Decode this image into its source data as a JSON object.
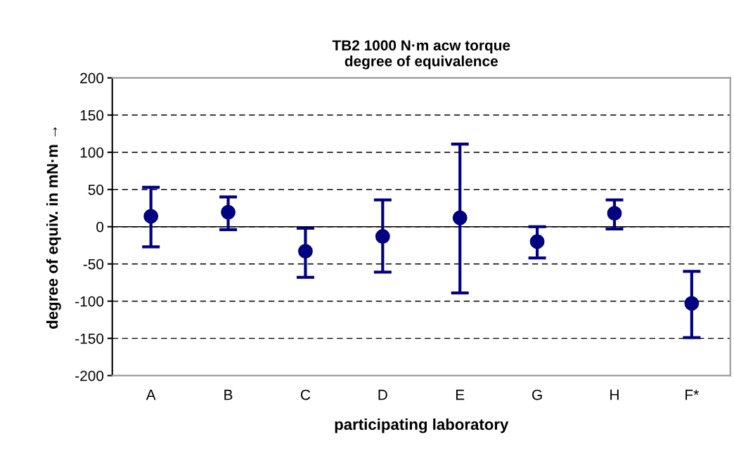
{
  "chart_data": {
    "type": "scatter",
    "title": "TB2 1000 N·m acw torque\ndegree of equivalence",
    "xlabel": "participating laboratory",
    "ylabel": "degree of equiv. in mN·m →",
    "categories": [
      "A",
      "B",
      "C",
      "D",
      "E",
      "G",
      "H",
      "F*"
    ],
    "series": [
      {
        "color": "#000080",
        "values": [
          14,
          19.5,
          -33,
          -13,
          12,
          -20,
          18,
          -103
        ],
        "errors": [
          [
            -27,
            53
          ],
          [
            -4,
            40
          ],
          [
            -68,
            -2
          ],
          [
            -61,
            36
          ],
          [
            -89,
            111
          ],
          [
            -42,
            0
          ],
          [
            -3,
            36
          ],
          [
            -149,
            -60
          ]
        ]
      }
    ],
    "ylim": [
      -200,
      200
    ],
    "yticks": [
      -200,
      -150,
      -100,
      -50,
      0,
      50,
      100,
      150,
      200
    ],
    "grid": "y",
    "marker": "circle",
    "legend": false,
    "ref_lines": [
      {
        "axis": "y",
        "value": 0,
        "color": "#000000",
        "line_style": "solid"
      }
    ]
  }
}
